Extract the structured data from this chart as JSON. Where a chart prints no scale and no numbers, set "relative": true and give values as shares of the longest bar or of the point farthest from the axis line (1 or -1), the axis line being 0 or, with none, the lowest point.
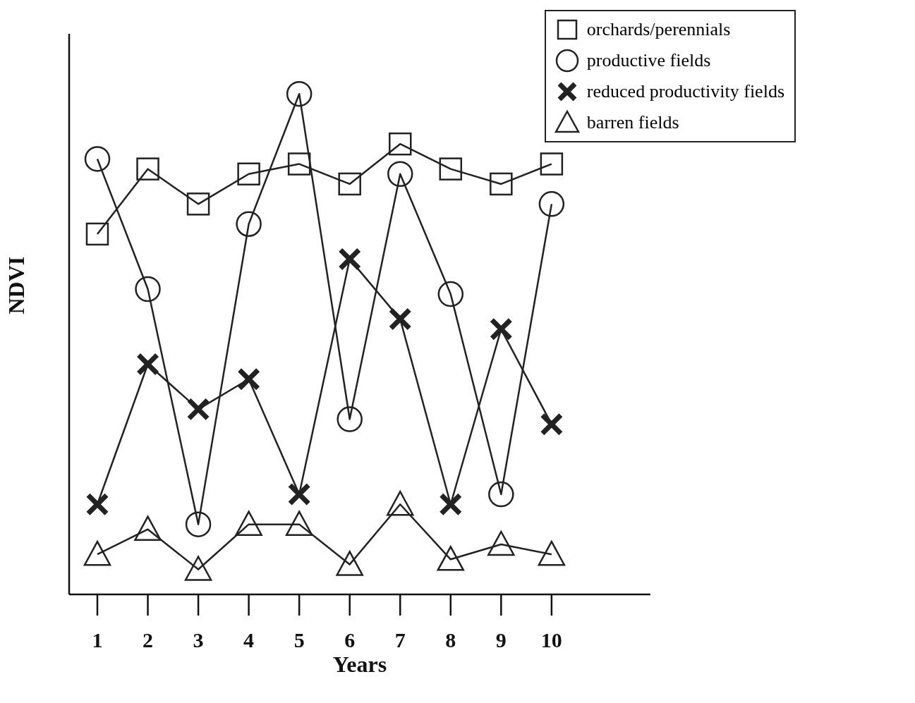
{
  "chart_data": {
    "type": "line",
    "xlabel": "Years",
    "ylabel": "NDVI",
    "relative": true,
    "categories": [
      "1",
      "2",
      "3",
      "4",
      "5",
      "6",
      "7",
      "8",
      "9",
      "10"
    ],
    "legend": "top right",
    "grid": false,
    "series": [
      {
        "name": "orchards/perennials",
        "color": "#222222",
        "marker": "square",
        "values": [
          0.72,
          0.85,
          0.78,
          0.84,
          0.86,
          0.82,
          0.9,
          0.85,
          0.82,
          0.86
        ]
      },
      {
        "name": "productive fields",
        "color": "#222222",
        "marker": "circle",
        "values": [
          0.87,
          0.61,
          0.14,
          0.74,
          1,
          0.35,
          0.84,
          0.6,
          0.2,
          0.78
        ]
      },
      {
        "name": "reduced productivity fields",
        "color": "#222222",
        "marker": "cross",
        "values": [
          0.18,
          0.46,
          0.37,
          0.43,
          0.2,
          0.67,
          0.55,
          0.18,
          0.53,
          0.34
        ]
      },
      {
        "name": "barren fields",
        "color": "#222222",
        "marker": "triangle",
        "values": [
          0.08,
          0.13,
          0.05,
          0.14,
          0.14,
          0.06,
          0.18,
          0.07,
          0.1,
          0.08
        ]
      }
    ]
  }
}
